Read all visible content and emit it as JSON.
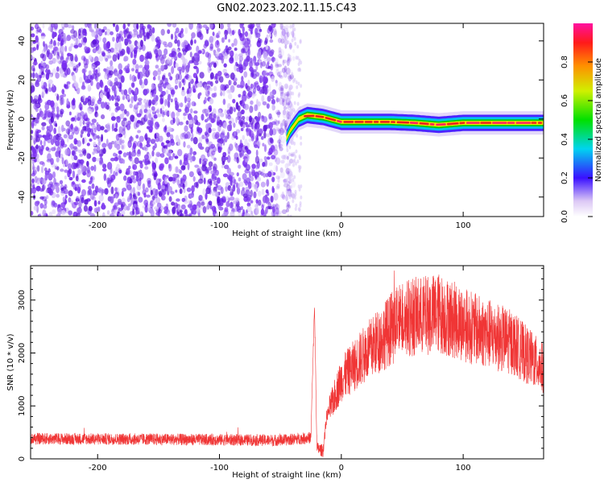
{
  "title": "GN02.2023.202.11.15.C43",
  "chart_data": [
    {
      "type": "heatmap",
      "xlabel": "Height of straight line (km)",
      "ylabel": "Frequency (Hz)",
      "xlim": [
        -255,
        166
      ],
      "ylim": [
        -50,
        49
      ],
      "xticks": [
        -200,
        -100,
        0,
        100
      ],
      "yticks": [
        -40,
        -20,
        0,
        20,
        40
      ],
      "colorbar": {
        "label": "Normalized spectral amplitude",
        "range": [
          0,
          1
        ],
        "ticks": [
          0.0,
          0.2,
          0.4,
          0.6,
          0.8
        ],
        "tick_labels": [
          "0.0",
          "0.2",
          "0.4",
          "0.6",
          "0.8"
        ]
      },
      "signal_track": {
        "description_points": [
          {
            "height_km": -45,
            "freq_hz": -10
          },
          {
            "height_km": -42,
            "freq_hz": -6
          },
          {
            "height_km": -35,
            "freq_hz": 0
          },
          {
            "height_km": -28,
            "freq_hz": 2
          },
          {
            "height_km": -15,
            "freq_hz": 1
          },
          {
            "height_km": 0,
            "freq_hz": -1.5
          },
          {
            "height_km": 40,
            "freq_hz": -1.5
          },
          {
            "height_km": 60,
            "freq_hz": -2
          },
          {
            "height_km": 80,
            "freq_hz": -3
          },
          {
            "height_km": 100,
            "freq_hz": -2
          },
          {
            "height_km": 166,
            "freq_hz": -2
          }
        ],
        "peak_amplitude": 0.9
      },
      "noise_region_km": [
        -255,
        -45
      ]
    },
    {
      "type": "line",
      "xlabel": "Height of straight line (km)",
      "ylabel": "SNR (10 * v/v)",
      "xlim": [
        -255,
        166
      ],
      "ylim": [
        0,
        3650
      ],
      "xticks": [
        -200,
        -100,
        0,
        100
      ],
      "yticks": [
        0,
        1000,
        2000,
        3000
      ],
      "color": "#f03535",
      "envelope": [
        {
          "x": -255,
          "y": 380
        },
        {
          "x": -150,
          "y": 370
        },
        {
          "x": -50,
          "y": 350
        },
        {
          "x": -25,
          "y": 400
        },
        {
          "x": -22,
          "y": 2900
        },
        {
          "x": -20,
          "y": 200
        },
        {
          "x": -15,
          "y": 150
        },
        {
          "x": -12,
          "y": 800
        },
        {
          "x": 0,
          "y": 1500
        },
        {
          "x": 20,
          "y": 2000
        },
        {
          "x": 50,
          "y": 2650
        },
        {
          "x": 80,
          "y": 2750
        },
        {
          "x": 110,
          "y": 2450
        },
        {
          "x": 140,
          "y": 2200
        },
        {
          "x": 166,
          "y": 1700
        }
      ],
      "peak_y": 3600
    }
  ]
}
